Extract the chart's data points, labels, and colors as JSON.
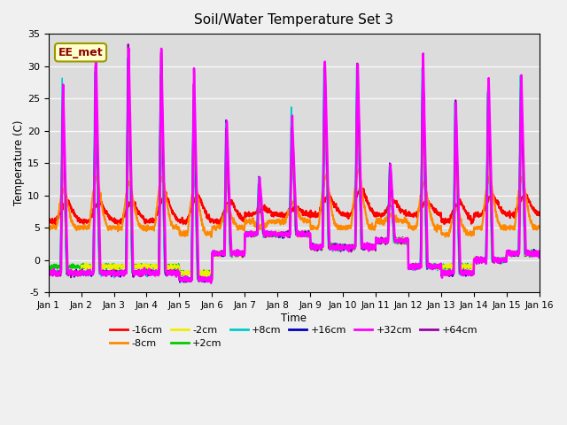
{
  "title": "Soil/Water Temperature Set 3",
  "xlabel": "Time",
  "ylabel": "Temperature (C)",
  "ylim": [
    -5,
    35
  ],
  "xlim": [
    0,
    15
  ],
  "xtick_labels": [
    "Jan 1",
    "Jan 2",
    "Jan 3",
    "Jan 4",
    "Jan 5",
    "Jan 6",
    "Jan 7",
    "Jan 8",
    "Jan 9",
    "Jan 10",
    "Jan 11",
    "Jan 12",
    "Jan 13",
    "Jan 14",
    "Jan 15",
    "Jan 16"
  ],
  "xtick_positions": [
    0,
    1,
    2,
    3,
    4,
    5,
    6,
    7,
    8,
    9,
    10,
    11,
    12,
    13,
    14,
    15
  ],
  "ytick_labels": [
    "-5",
    "0",
    "5",
    "10",
    "15",
    "20",
    "25",
    "30",
    "35"
  ],
  "ytick_positions": [
    -5,
    0,
    5,
    10,
    15,
    20,
    25,
    30,
    35
  ],
  "background_color": "#dcdcdc",
  "fig_background": "#f0f0f0",
  "series_colors": {
    "-16cm": "#ff0000",
    "-8cm": "#ff8800",
    "-2cm": "#eeee00",
    "+2cm": "#00cc00",
    "+8cm": "#00cccc",
    "+16cm": "#0000bb",
    "+32cm": "#ff00ff",
    "+64cm": "#9900aa"
  },
  "annotation_text": "EE_met",
  "legend_order": [
    "-16cm",
    "-8cm",
    "-2cm",
    "+2cm",
    "+8cm",
    "+16cm",
    "+32cm",
    "+64cm"
  ]
}
